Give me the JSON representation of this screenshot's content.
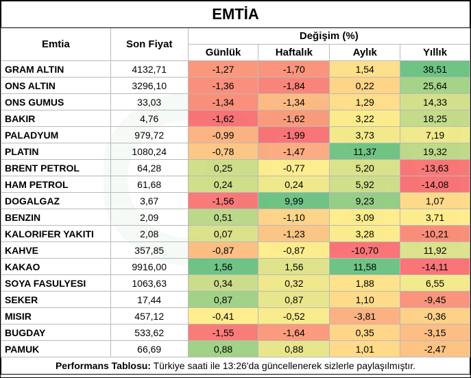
{
  "title": "EMTİA",
  "headers": {
    "commodity": "Emtia",
    "last_price": "Son Fiyat",
    "change_group": "Değişim (%)",
    "daily": "Günlük",
    "weekly": "Haftalık",
    "monthly": "Aylık",
    "yearly": "Yıllık"
  },
  "rows": [
    {
      "name": "GRAM ALTIN",
      "price": "4132,71",
      "d": "-1,27",
      "w": "-1,70",
      "m": "1,54",
      "y": "38,51"
    },
    {
      "name": "ONS ALTIN",
      "price": "3296,10",
      "d": "-1,36",
      "w": "-1,84",
      "m": "0,22",
      "y": "25,64"
    },
    {
      "name": "ONS GUMUS",
      "price": "33,03",
      "d": "-1,34",
      "w": "-1,34",
      "m": "1,29",
      "y": "14,33"
    },
    {
      "name": "BAKIR",
      "price": "4,76",
      "d": "-1,62",
      "w": "-1,62",
      "m": "3,22",
      "y": "18,25"
    },
    {
      "name": "PALADYUM",
      "price": "979,72",
      "d": "-0,99",
      "w": "-1,99",
      "m": "3,73",
      "y": "7,19"
    },
    {
      "name": "PLATIN",
      "price": "1080,24",
      "d": "-0,78",
      "w": "-1,47",
      "m": "11,37",
      "y": "19,32"
    },
    {
      "name": "BRENT PETROL",
      "price": "64,28",
      "d": "0,25",
      "w": "-0,77",
      "m": "5,20",
      "y": "-13,63"
    },
    {
      "name": "HAM PETROL",
      "price": "61,68",
      "d": "0,24",
      "w": "0,24",
      "m": "5,92",
      "y": "-14,08"
    },
    {
      "name": "DOGALGAZ",
      "price": "3,67",
      "d": "-1,56",
      "w": "9,99",
      "m": "9,23",
      "y": "1,07"
    },
    {
      "name": "BENZIN",
      "price": "2,09",
      "d": "0,51",
      "w": "-1,10",
      "m": "3,09",
      "y": "3,71"
    },
    {
      "name": "KALORIFER YAKITI",
      "price": "2,08",
      "d": "0,07",
      "w": "-1,23",
      "m": "3,28",
      "y": "-10,21"
    },
    {
      "name": "KAHVE",
      "price": "357,85",
      "d": "-0,87",
      "w": "-0,87",
      "m": "-10,70",
      "y": "11,92"
    },
    {
      "name": "KAKAO",
      "price": "9916,00",
      "d": "1,56",
      "w": "1,56",
      "m": "11,58",
      "y": "-14,11"
    },
    {
      "name": "SOYA FASULYESI",
      "price": "1063,63",
      "d": "0,34",
      "w": "0,32",
      "m": "1,88",
      "y": "6,55"
    },
    {
      "name": "SEKER",
      "price": "17,44",
      "d": "0,87",
      "w": "0,87",
      "m": "1,10",
      "y": "-9,45"
    },
    {
      "name": "MISIR",
      "price": "457,12",
      "d": "-0,41",
      "w": "-0,52",
      "m": "-3,81",
      "y": "-0,36"
    },
    {
      "name": "BUGDAY",
      "price": "533,62",
      "d": "-1,55",
      "w": "-1,64",
      "m": "0,35",
      "y": "-3,15"
    },
    {
      "name": "PAMUK",
      "price": "66,69",
      "d": "0,88",
      "w": "0,88",
      "m": "1,01",
      "y": "-2,47"
    }
  ],
  "footer": {
    "bold": "Performans Tablosu:",
    "text": " Türkiye saati ile 13:26'da güncellenerek sizlerle paylaşılmıştır."
  },
  "colors": {
    "red": "#f8696b",
    "yellow": "#ffeb84",
    "green": "#63be7b"
  }
}
